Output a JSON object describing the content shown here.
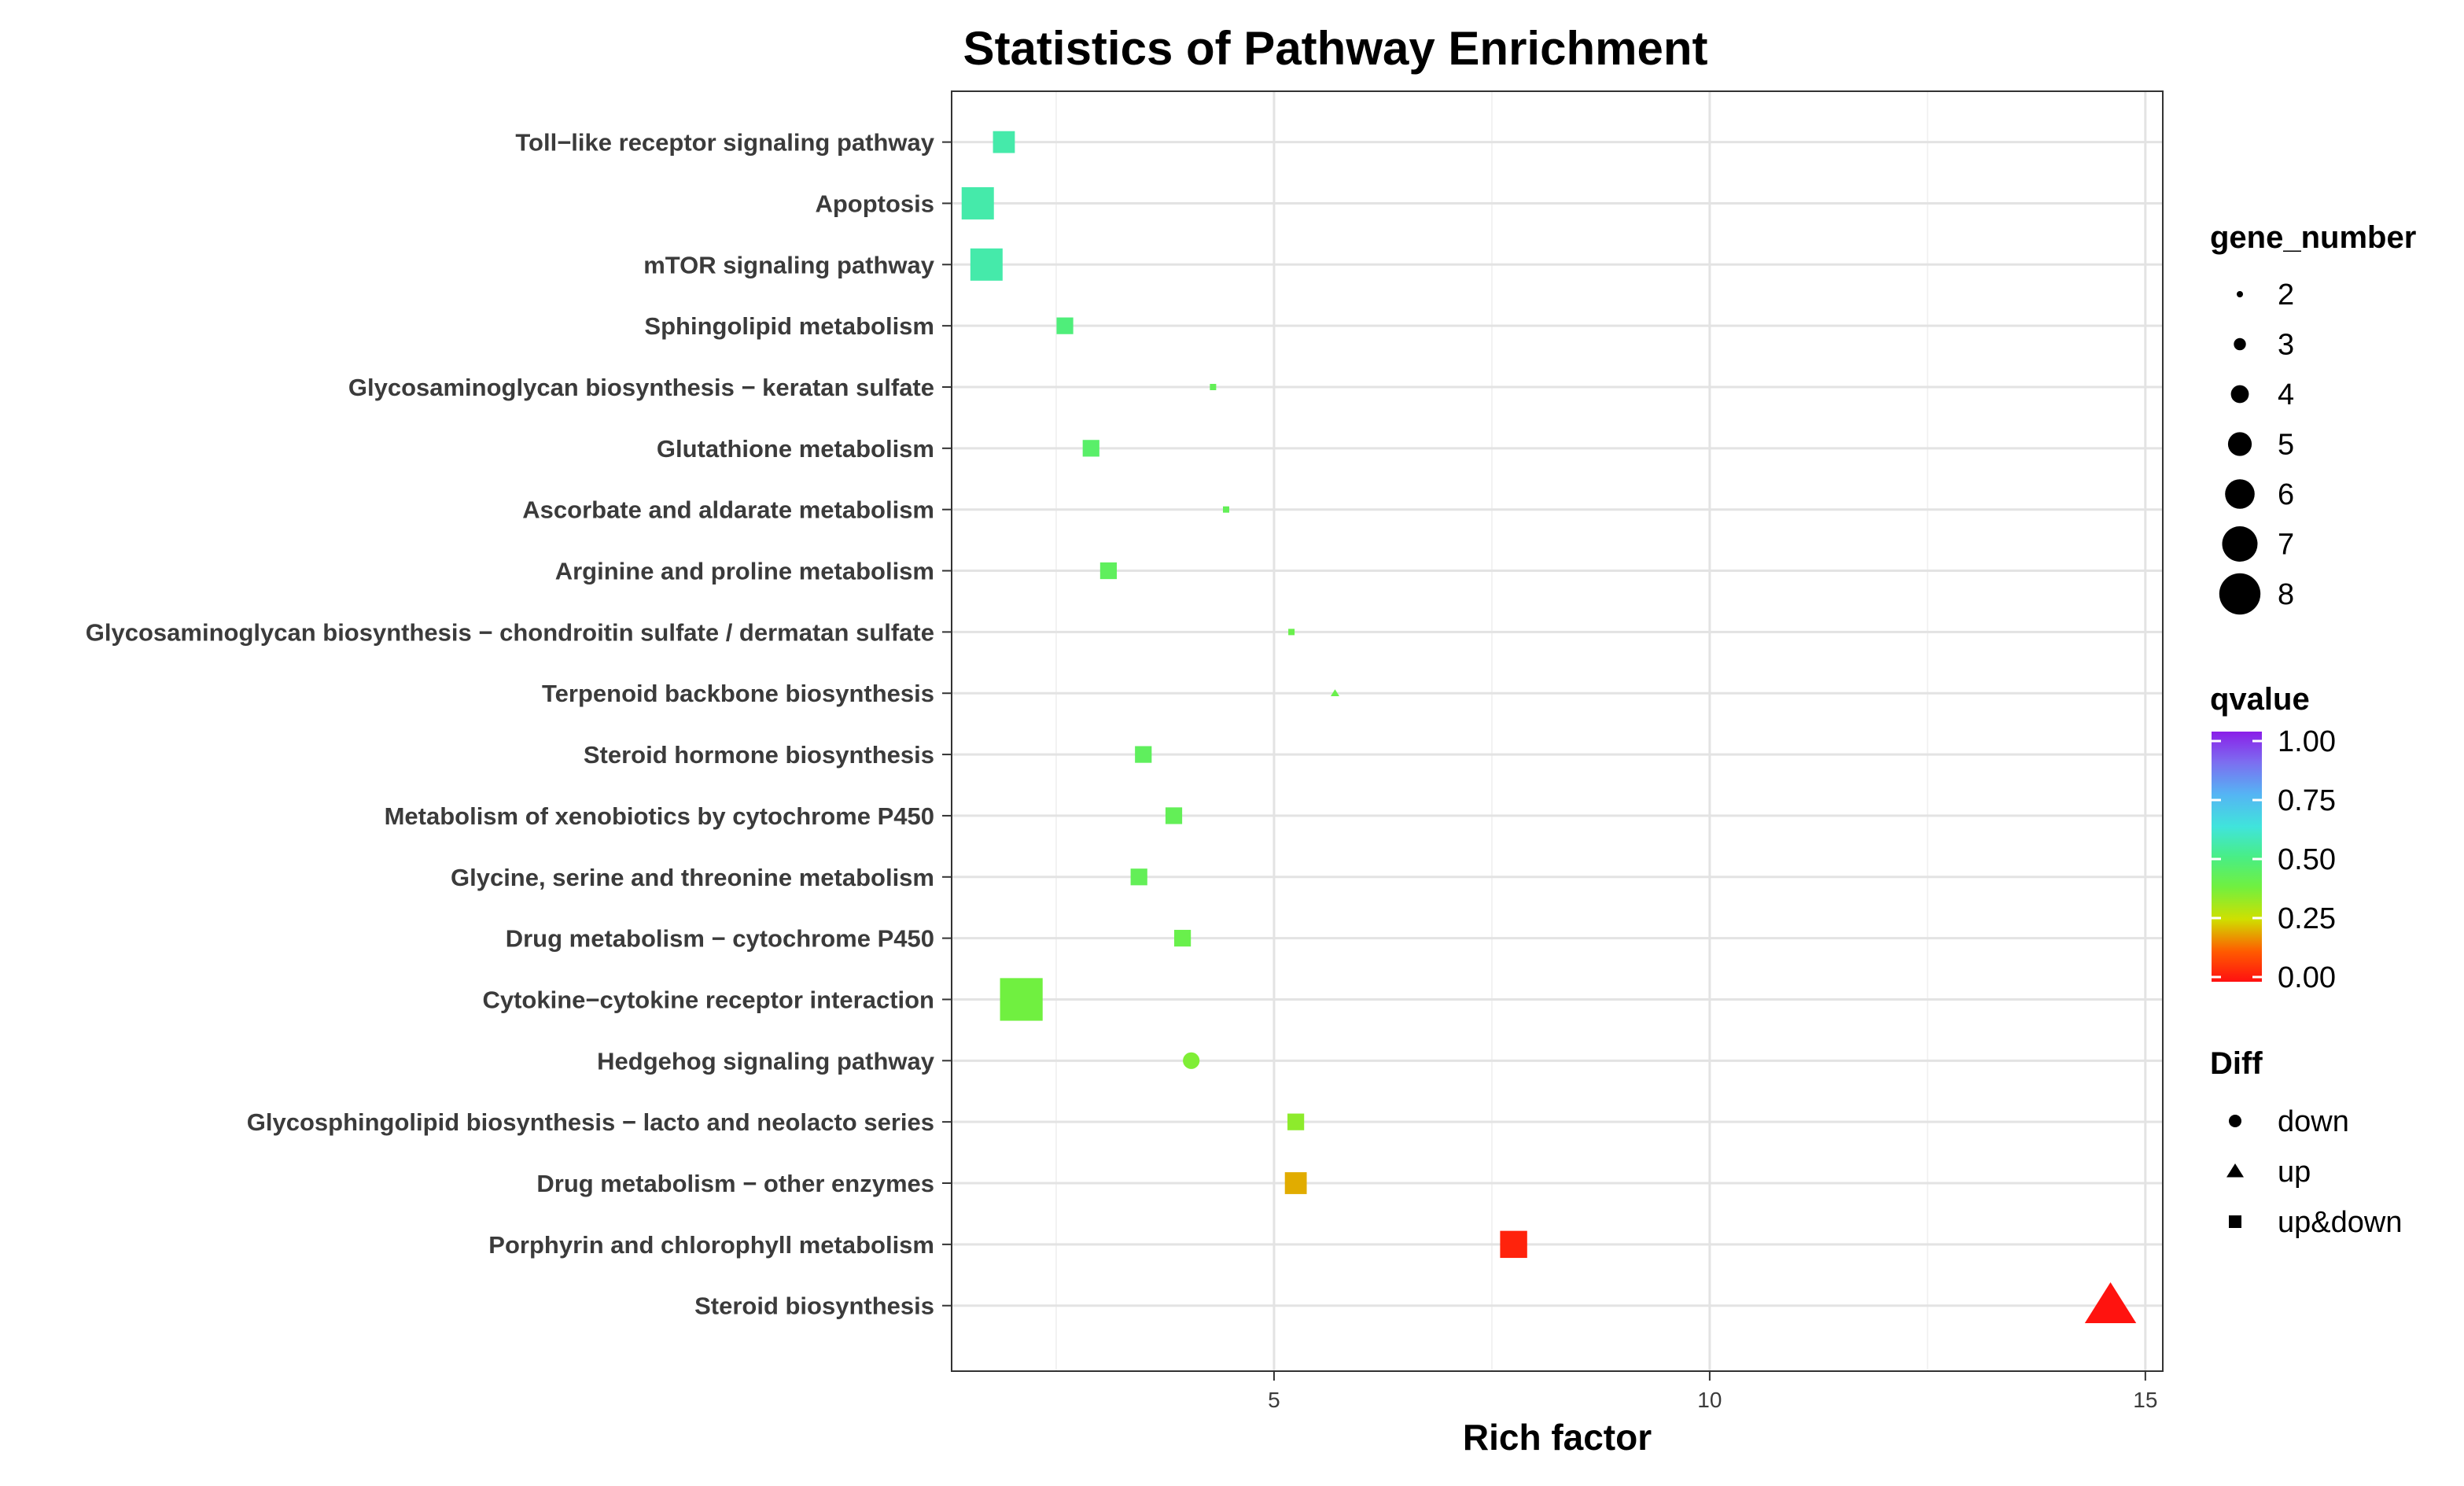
{
  "chart_data": {
    "type": "scatter",
    "title": "Statistics of Pathway Enrichment",
    "xlabel": "Rich factor",
    "ylabel": "",
    "xlim": [
      1.3,
      15.2
    ],
    "xticks": [
      5,
      10,
      15
    ],
    "grid": true,
    "categories": [
      "Toll−like receptor signaling pathway",
      "Apoptosis",
      "mTOR signaling pathway",
      "Sphingolipid metabolism",
      "Glycosaminoglycan biosynthesis − keratan sulfate",
      "Glutathione metabolism",
      "Ascorbate and aldarate metabolism",
      "Arginine and proline metabolism",
      "Glycosaminoglycan biosynthesis − chondroitin sulfate / dermatan sulfate",
      "Terpenoid backbone biosynthesis",
      "Steroid hormone biosynthesis",
      "Metabolism of xenobiotics by cytochrome P450",
      "Glycine, serine and threonine metabolism",
      "Drug metabolism − cytochrome P450",
      "Cytokine−cytokine receptor interaction",
      "Hedgehog signaling pathway",
      "Glycosphingolipid biosynthesis − lacto and neolacto series",
      "Drug metabolism − other enzymes",
      "Porphyrin and chlorophyll metabolism",
      "Steroid biosynthesis"
    ],
    "points": [
      {
        "rich_factor": 1.9,
        "gene_number": 4,
        "qvalue": 0.55,
        "diff": "up&down"
      },
      {
        "rich_factor": 1.6,
        "gene_number": 6,
        "qvalue": 0.55,
        "diff": "up&down"
      },
      {
        "rich_factor": 1.7,
        "gene_number": 6,
        "qvalue": 0.55,
        "diff": "up&down"
      },
      {
        "rich_factor": 2.6,
        "gene_number": 3,
        "qvalue": 0.48,
        "diff": "up&down"
      },
      {
        "rich_factor": 4.3,
        "gene_number": 1,
        "qvalue": 0.42,
        "diff": "up&down"
      },
      {
        "rich_factor": 2.9,
        "gene_number": 3,
        "qvalue": 0.45,
        "diff": "up&down"
      },
      {
        "rich_factor": 4.45,
        "gene_number": 1,
        "qvalue": 0.42,
        "diff": "up&down"
      },
      {
        "rich_factor": 3.1,
        "gene_number": 3,
        "qvalue": 0.43,
        "diff": "up&down"
      },
      {
        "rich_factor": 5.2,
        "gene_number": 1,
        "qvalue": 0.4,
        "diff": "up&down"
      },
      {
        "rich_factor": 5.7,
        "gene_number": 1,
        "qvalue": 0.4,
        "diff": "up"
      },
      {
        "rich_factor": 3.5,
        "gene_number": 3,
        "qvalue": 0.43,
        "diff": "up&down"
      },
      {
        "rich_factor": 3.85,
        "gene_number": 3,
        "qvalue": 0.42,
        "diff": "up&down"
      },
      {
        "rich_factor": 3.45,
        "gene_number": 3,
        "qvalue": 0.42,
        "diff": "up&down"
      },
      {
        "rich_factor": 3.95,
        "gene_number": 3,
        "qvalue": 0.4,
        "diff": "up&down"
      },
      {
        "rich_factor": 2.1,
        "gene_number": 8,
        "qvalue": 0.38,
        "diff": "up&down"
      },
      {
        "rich_factor": 4.05,
        "gene_number": 3,
        "qvalue": 0.36,
        "diff": "down"
      },
      {
        "rich_factor": 5.25,
        "gene_number": 3,
        "qvalue": 0.34,
        "diff": "up&down"
      },
      {
        "rich_factor": 5.25,
        "gene_number": 4,
        "qvalue": 0.2,
        "diff": "up&down"
      },
      {
        "rich_factor": 7.75,
        "gene_number": 5,
        "qvalue": 0.03,
        "diff": "up&down"
      },
      {
        "rich_factor": 14.6,
        "gene_number": 7,
        "qvalue": 0.005,
        "diff": "up"
      }
    ],
    "legend": {
      "size_title": "gene_number",
      "size_values": [
        2,
        3,
        4,
        5,
        6,
        7,
        8
      ],
      "color_title": "qvalue",
      "color_ticks": [
        "1.00",
        "0.75",
        "0.50",
        "0.25",
        "0.00"
      ],
      "shape_title": "Diff",
      "shape_values": [
        "down",
        "up",
        "up&down"
      ]
    }
  }
}
